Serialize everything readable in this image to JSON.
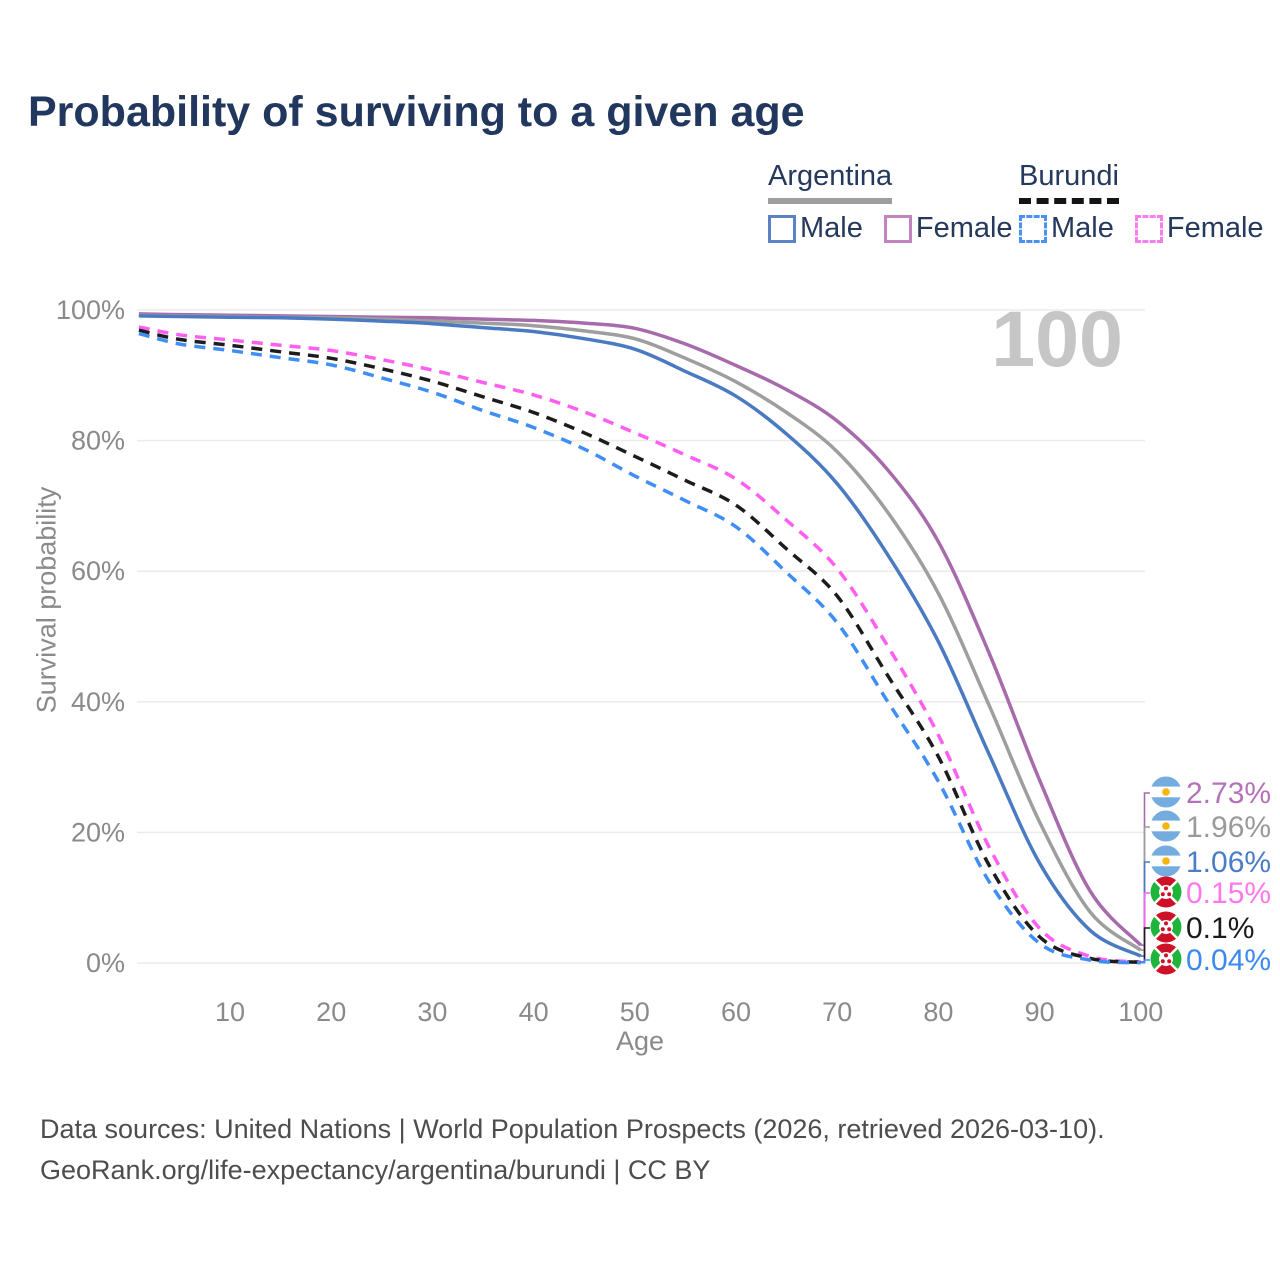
{
  "title": "Probability of surviving to a given age",
  "legend": {
    "groups": [
      {
        "name": "Argentina",
        "line_style": "solid",
        "underline_color": "#9e9e9e",
        "items": [
          {
            "label": "Male",
            "color": "#5b83c4"
          },
          {
            "label": "Female",
            "color": "#c184bf"
          }
        ]
      },
      {
        "name": "Burundi",
        "line_style": "dashed",
        "underline_color": "#141414",
        "items": [
          {
            "label": "Male",
            "color": "#4a90f5"
          },
          {
            "label": "Female",
            "color": "#ff7cf0"
          }
        ]
      }
    ]
  },
  "chart_data": {
    "type": "line",
    "title": "Probability of surviving to a given age",
    "xlabel": "Age",
    "ylabel": "Survival probability",
    "watermark": "100",
    "xlim": [
      1,
      100
    ],
    "ylim": [
      0,
      100
    ],
    "grid": "horizontal-only",
    "x_ticks": [
      "10",
      "20",
      "30",
      "40",
      "50",
      "60",
      "70",
      "80",
      "90",
      "100"
    ],
    "y_ticks": [
      "0%",
      "20%",
      "40%",
      "60%",
      "80%",
      "100%"
    ],
    "x": [
      1,
      5,
      10,
      15,
      20,
      25,
      30,
      35,
      40,
      45,
      50,
      55,
      60,
      65,
      70,
      75,
      80,
      85,
      90,
      95,
      100
    ],
    "series": [
      {
        "id": "argentina-female",
        "country": "argentina",
        "legend": "Female",
        "style": "solid",
        "color": "#a76bac",
        "label_color": "#b472b8",
        "end_label": "2.73%",
        "values": [
          99.4,
          99.3,
          99.2,
          99.1,
          99.0,
          98.9,
          98.8,
          98.6,
          98.4,
          98.0,
          97.2,
          94.8,
          91.5,
          87.8,
          83.0,
          75.5,
          64.5,
          47.5,
          28.0,
          11.0,
          2.73
        ]
      },
      {
        "id": "argentina-combined",
        "country": "argentina",
        "legend": "",
        "style": "solid",
        "color": "#9e9e9e",
        "label_color": "#9a9a9a",
        "end_label": "1.96%",
        "values": [
          99.2,
          99.1,
          99.0,
          98.9,
          98.8,
          98.6,
          98.3,
          98.0,
          97.6,
          96.8,
          95.6,
          92.6,
          89.0,
          84.3,
          78.3,
          69.0,
          56.6,
          39.5,
          21.6,
          7.8,
          1.96
        ]
      },
      {
        "id": "argentina-male",
        "country": "argentina",
        "legend": "Male",
        "style": "solid",
        "color": "#4a7ac2",
        "label_color": "#4a7cc8",
        "end_label": "1.06%",
        "values": [
          99.1,
          99.0,
          98.9,
          98.8,
          98.6,
          98.3,
          97.9,
          97.3,
          96.7,
          95.6,
          94.0,
          90.6,
          86.8,
          81.0,
          73.4,
          62.5,
          49.2,
          32.0,
          15.3,
          5.0,
          1.06
        ]
      },
      {
        "id": "burundi-female",
        "country": "burundi",
        "legend": "Female",
        "style": "dashed",
        "color": "#ff5ff0",
        "label_color": "#ff78ec",
        "end_label": "0.15%",
        "values": [
          97.4,
          96.2,
          95.4,
          94.6,
          93.8,
          92.4,
          90.8,
          88.9,
          87.0,
          84.4,
          81.2,
          77.8,
          74.1,
          67.8,
          60.4,
          48.5,
          34.9,
          17.8,
          5.3,
          1.0,
          0.15
        ]
      },
      {
        "id": "burundi-combined",
        "country": "burundi",
        "legend": "",
        "style": "dashed",
        "color": "#1c1c1c",
        "label_color": "#1a1a1a",
        "end_label": "0.1%",
        "values": [
          96.9,
          95.5,
          94.6,
          93.6,
          92.6,
          91.0,
          89.1,
          86.7,
          84.3,
          81.2,
          77.6,
          73.9,
          70.1,
          63.4,
          56.2,
          44.0,
          31.6,
          15.0,
          4.0,
          0.7,
          0.1
        ]
      },
      {
        "id": "burundi-male",
        "country": "burundi",
        "legend": "Male",
        "style": "dashed",
        "color": "#3f8ef5",
        "label_color": "#3a8af0",
        "end_label": "0.04%",
        "values": [
          96.4,
          94.8,
          93.8,
          92.7,
          91.6,
          89.6,
          87.4,
          84.6,
          82.0,
          78.7,
          74.6,
          70.8,
          66.8,
          59.8,
          52.1,
          40.0,
          27.8,
          12.5,
          3.0,
          0.45,
          0.04
        ]
      }
    ],
    "flag_colors": {
      "argentina_blue": "#74acdf",
      "argentina_sun": "#f6b40e",
      "burundi_red": "#ce1126",
      "burundi_green": "#1eb53a"
    }
  },
  "footer": {
    "line1": "Data sources: United Nations | World Population Prospects (2026, retrieved 2026-03-10).",
    "line2": "GeoRank.org/life-expectancy/argentina/burundi | CC BY"
  }
}
